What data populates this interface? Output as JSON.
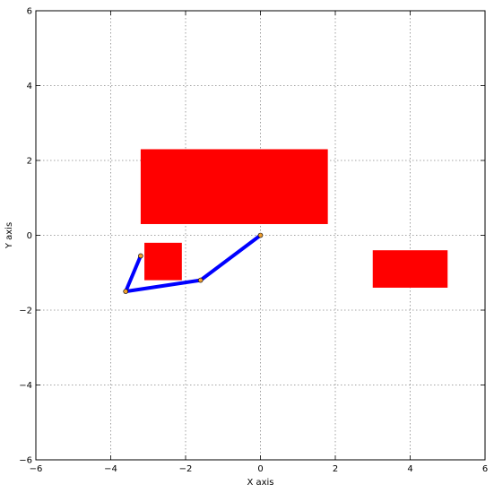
{
  "chart_data": {
    "type": "scatter",
    "title": "",
    "xlabel": "X axis",
    "ylabel": "Y axis",
    "xlim": [
      -6,
      6
    ],
    "ylim": [
      -6,
      6
    ],
    "grid": true,
    "xticks": [
      "−6",
      "−4",
      "−2",
      "0",
      "2",
      "4",
      "6"
    ],
    "yticks": [
      "−6",
      "−4",
      "−2",
      "0",
      "2",
      "4",
      "6"
    ],
    "xtick_values": [
      -6,
      -4,
      -2,
      0,
      2,
      4,
      6
    ],
    "ytick_values": [
      -6,
      -4,
      -2,
      0,
      2,
      4,
      6
    ],
    "obstacles": [
      {
        "x": [
          -3.2,
          1.8
        ],
        "y": [
          0.3,
          2.3
        ],
        "color": "#ff0000"
      },
      {
        "x": [
          -3.1,
          -2.1
        ],
        "y": [
          -1.2,
          -0.2
        ],
        "color": "#ff0000"
      },
      {
        "x": [
          3.0,
          5.0
        ],
        "y": [
          -1.4,
          -0.4
        ],
        "color": "#ff0000"
      }
    ],
    "arm": {
      "color": "#0000ff",
      "joint_color": "#f0a030",
      "x": [
        0,
        -1.6,
        -3.6,
        -3.2
      ],
      "y": [
        0,
        -1.2,
        -1.5,
        -0.55
      ]
    }
  }
}
